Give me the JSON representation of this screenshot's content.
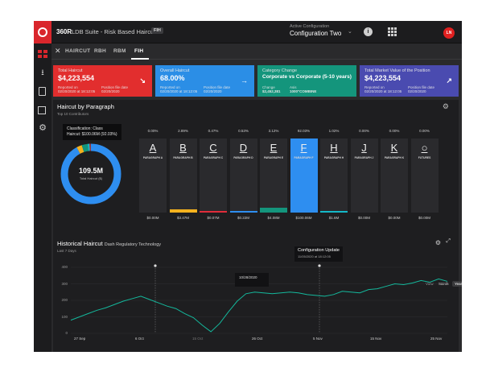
{
  "topbar": {
    "brand": "360R",
    "suite": "LDB Suite - Risk Based Haircut",
    "badge": "FIH",
    "config_label": "Active Configuration",
    "config_value": "Configuration Two",
    "avatar": "LN"
  },
  "tabs": [
    "HAIRCUT",
    "RBH",
    "RBM",
    "FIH"
  ],
  "active_tab": "FIH",
  "cards": [
    {
      "title": "Total Haircut",
      "value": "$4,223,554",
      "sub1": "Reported on",
      "sub1v": "02/20/2020 at 18:12:05",
      "sub2": "Position file date",
      "sub2v": "02/20/2020",
      "color": "#e22e2e"
    },
    {
      "title": "Overall Haircut",
      "value": "68.00%",
      "sub1": "Reported on",
      "sub1v": "02/20/2020 at 18:12:05",
      "sub2": "Position file date",
      "sub2v": "02/20/2020",
      "color": "#2b8ee6"
    },
    {
      "title": "Category Change",
      "value": "Corporate vs Corporate (5-10 years)",
      "sub1": "Change",
      "sub1v": "$2,452,381",
      "sub2": "Asis",
      "sub2v": "1000\"COMBINE",
      "color": "#14957c"
    },
    {
      "title": "Total Market Value of the Position",
      "value": "$4,223,554",
      "sub1": "Reported on",
      "sub1v": "02/20/2020 at 18:12:05",
      "sub2": "Position file date",
      "sub2v": "02/20/2020",
      "color": "#4a4bb0"
    }
  ],
  "paragraph_panel": {
    "title": "Haircut by Paragraph",
    "subtitle": "Top 10 Contributors",
    "tooltip_line1": "Classification: Class",
    "tooltip_line2": "Haircut: $100.06M (92.03%)",
    "donut_value": "109.5M",
    "donut_label": "Total Haircut ($)",
    "columns": [
      {
        "letter": "A",
        "label": "PARAGRAPH A",
        "pct": "0.00%",
        "amount": "$0.00M",
        "fill": 0.0,
        "color": "#2a2a2d"
      },
      {
        "letter": "B",
        "label": "PARAGRAPH B",
        "pct": "2.89%",
        "amount": "$3.47M",
        "fill": 0.07,
        "color": "#f5b21e"
      },
      {
        "letter": "C",
        "label": "PARAGRAPH C",
        "pct": "0.47%",
        "amount": "$0.07M",
        "fill": 0.015,
        "color": "#e02c3a"
      },
      {
        "letter": "D",
        "label": "PARAGRAPH D",
        "pct": "0.53%",
        "amount": "$0.22M",
        "fill": 0.02,
        "color": "#2e8ef0"
      },
      {
        "letter": "E",
        "label": "PARAGRAPH E",
        "pct": "3.12%",
        "amount": "$4.08M",
        "fill": 0.1,
        "color": "#14957c"
      },
      {
        "letter": "F",
        "label": "PARAGRAPH F",
        "pct": "92.03%",
        "amount": "$100.06M",
        "fill": 1.0,
        "color": "#2e8ef0"
      },
      {
        "letter": "H",
        "label": "PARAGRAPH H",
        "pct": "1.02%",
        "amount": "$1.6M",
        "fill": 0.04,
        "color": "#14b8c8"
      },
      {
        "letter": "J",
        "label": "PARAGRAPH J",
        "pct": "0.00%",
        "amount": "$0.00M",
        "fill": 0.0,
        "color": "#2a2a2d"
      },
      {
        "letter": "K",
        "label": "PARAGRAPH K",
        "pct": "0.00%",
        "amount": "$0.00M",
        "fill": 0.0,
        "color": "#2a2a2d"
      },
      {
        "letter": "○",
        "label": "FUTURES",
        "pct": "0.00%",
        "amount": "$0.00M",
        "fill": 0.0,
        "color": "#2a2a2d"
      }
    ]
  },
  "history_panel": {
    "title": "Historical Haircut",
    "title_sub": "Dash Regulatory Technology",
    "subtitle": "Last 7 Days",
    "ranges": [
      "View",
      "Week",
      "Month",
      "Year"
    ],
    "active_range": "Year",
    "tooltip_title": "Configuration Update",
    "tooltip_sub": "11/05/2020 at 18:12:05",
    "hover_date": "10/28/2020"
  },
  "chart_data": {
    "type": "line",
    "yticks": [
      "400",
      "300",
      "200",
      "100",
      "0"
    ],
    "xticks": [
      "27 Sep",
      "6 Oct",
      "15 Oct",
      "26 Oct",
      "5 Nov",
      "15 Nov",
      "25 Nov"
    ],
    "ylim": [
      0,
      400
    ],
    "values": [
      80,
      100,
      120,
      140,
      155,
      175,
      195,
      210,
      225,
      205,
      185,
      165,
      150,
      120,
      95,
      50,
      10,
      60,
      130,
      195,
      240,
      250,
      245,
      240,
      245,
      250,
      245,
      235,
      230,
      225,
      235,
      255,
      250,
      245,
      265,
      270,
      285,
      300,
      295,
      305,
      320,
      310,
      330,
      315
    ],
    "line_color": "#14b89c"
  },
  "colors": {
    "brand": "#d9262c",
    "bg": "#2a2a2c",
    "panel": "#1e1e20"
  }
}
